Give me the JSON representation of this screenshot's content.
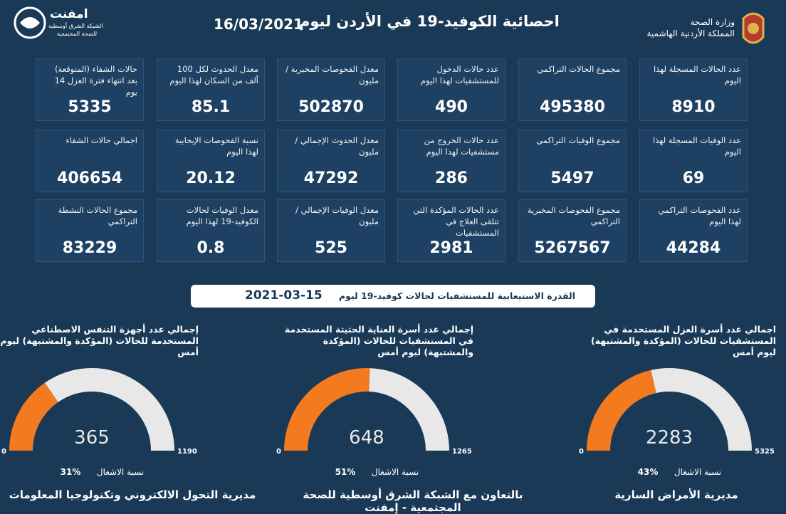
{
  "header": {
    "title": "احصائية الكوفيد-19 في الأردن ليوم",
    "date": "16/03/2021",
    "ministry": "وزارة الصحة",
    "kingdom": "المملكة الأردنية الهاشمية",
    "logo_name": "امفنت",
    "logo_sub1": "الشبكة الشرق أوسطية",
    "logo_sub2": "للصحة المجتمعية"
  },
  "cards": [
    {
      "label": "عدد الحالات المسجلة لهذا اليوم",
      "value": "8910"
    },
    {
      "label": "مجموع الحالات التراكمي",
      "value": "495380"
    },
    {
      "label": "عدد حالات الدخول للمستشفيات لهذا اليوم",
      "value": "490"
    },
    {
      "label": "معدل الفحوصات المخبرية /مليون",
      "value": "502870"
    },
    {
      "label": "معدل الحدوث لكل 100 ألف من السكان لهذا اليوم",
      "value": "85.1"
    },
    {
      "label": "حالات الشفاء (المتوقعة) بعد انتهاء فترة العزل 14 يوم",
      "value": "5335"
    },
    {
      "label": "عدد الوفيات المسجلة لهذا اليوم",
      "value": "69"
    },
    {
      "label": "مجموع الوفيات التراكمي",
      "value": "5497"
    },
    {
      "label": "عدد حالات الخروج من مستشفيات لهذا اليوم",
      "value": "286"
    },
    {
      "label": "معدل الحدوث الإجمالي /مليون",
      "value": "47292"
    },
    {
      "label": "نسبة الفحوصات الإيجابية لهذا اليوم",
      "value": "20.12"
    },
    {
      "label": "اجمالي حالات الشفاء",
      "value": "406654"
    },
    {
      "label": "عدد الفحوصات التراكمي لهذا اليوم",
      "value": "44284"
    },
    {
      "label": "مجموع الفحوصات المخبرية التراكمي",
      "value": "5267567"
    },
    {
      "label": "عدد الحالات المؤكدة التي تتلقى العلاج في المستشفيات",
      "value": "2981"
    },
    {
      "label": "معدل الوفيات الإجمالي /مليون",
      "value": "525"
    },
    {
      "label": "معدل الوفيات لحالات الكوفيد-19 لهذا اليوم",
      "value": "0.8"
    },
    {
      "label": "مجموع الحالات النشطة التراكمي",
      "value": "83229"
    }
  ],
  "capacity": {
    "title": "القدرة الاستيعابية للمستشفيات لحالات كوفيد-19 ليوم",
    "date": "2021-03-15"
  },
  "gauges": [
    {
      "title": "اجمالي عدد أسرة العزل المستخدمة في المستشفيات للحالات (المؤكدة والمشتبهة) ليوم أمس",
      "min": 0,
      "max": 5325,
      "value": 2283,
      "occupancy_label": "نسبة الاشغال",
      "occupancy": "43%",
      "colors": [
        "#f47a20",
        "#e8e8e8"
      ]
    },
    {
      "title": "إجمالي عدد أسرة العناية الحثيثة المستخدمة في المستشفيات للحالات (المؤكدة والمشتبهة) ليوم أمس",
      "min": 0,
      "max": 1265,
      "value": 648,
      "occupancy_label": "نسبة الاشغال",
      "occupancy": "51%",
      "colors": [
        "#f47a20",
        "#e8e8e8"
      ]
    },
    {
      "title": "إجمالي عدد أجهزة التنفس الاصطناعي المستخدمة للحالات (المؤكدة والمشتبهة) ليوم أمس",
      "min": 0,
      "max": 1190,
      "value": 365,
      "occupancy_label": "نسبة الاشغال",
      "occupancy": "31%",
      "colors": [
        "#f47a20",
        "#e8e8e8"
      ]
    }
  ],
  "footer": [
    "مديرية الأمراض السارية",
    "بالتعاون مع الشبكة الشرق أوسطية للصحة المجتمعية - إمفنت",
    "مديرية التحول الالكتروني وتكنولوجيا المعلومات"
  ]
}
